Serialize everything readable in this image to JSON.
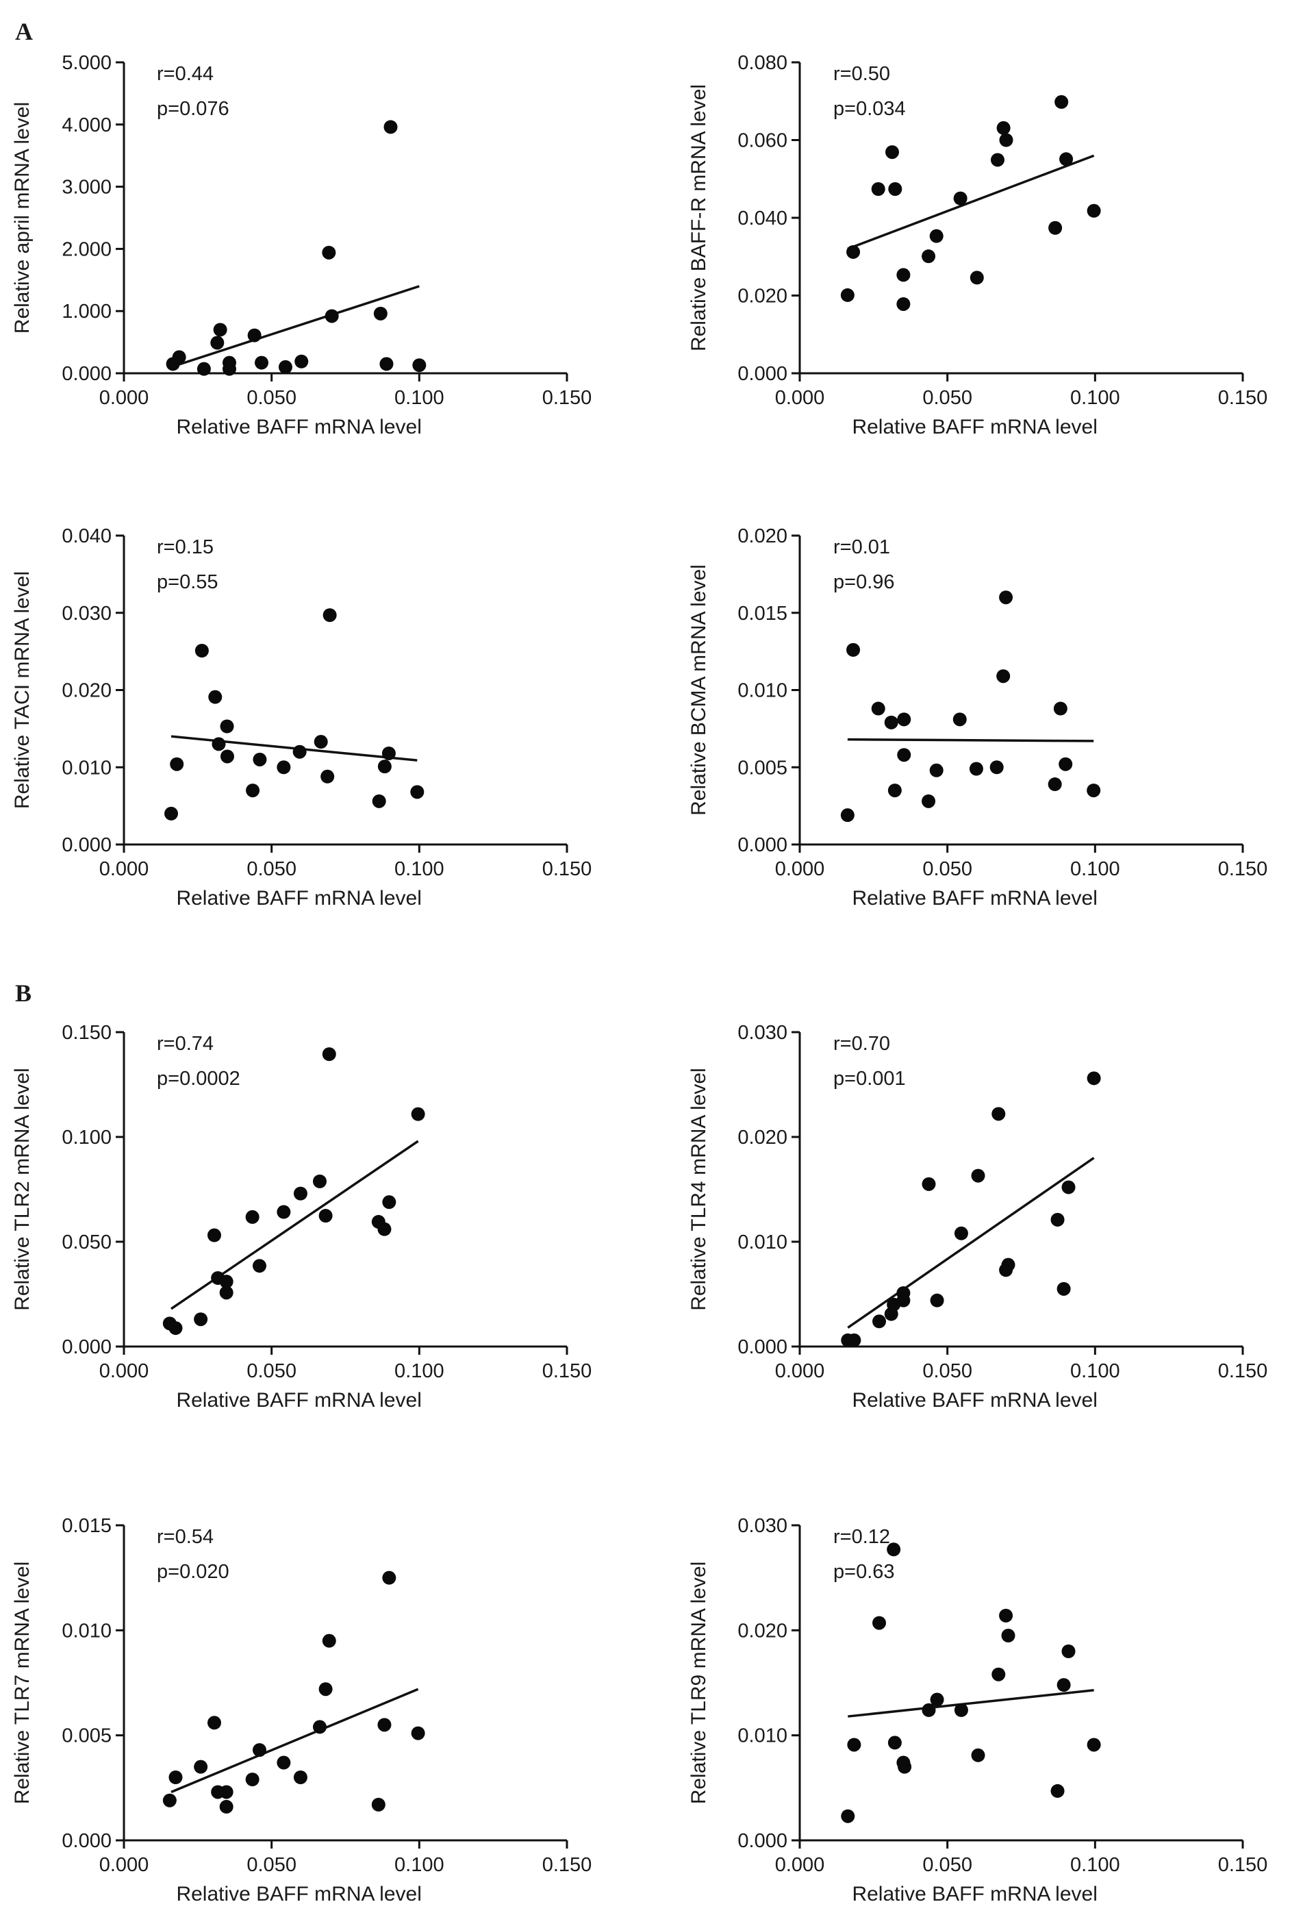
{
  "figure": {
    "panel_labels": [
      "A",
      "B"
    ]
  },
  "chart_data": [
    {
      "type": "scatter",
      "group": "A",
      "xlabel": "Relative BAFF mRNA level",
      "ylabel": "Relative april mRNA level",
      "xlim": [
        0,
        0.15
      ],
      "ylim": [
        0,
        5
      ],
      "xticks": [
        "0.000",
        "0.050",
        "0.100",
        "0.150"
      ],
      "yticks": [
        "0.000",
        "1.000",
        "2.000",
        "3.000",
        "4.000",
        "5.000"
      ],
      "r": "r=0.44",
      "p": "p=0.076",
      "x": [
        0.0166,
        0.0187,
        0.0271,
        0.0316,
        0.0326,
        0.0357,
        0.0357,
        0.0442,
        0.0466,
        0.0547,
        0.0601,
        0.0694,
        0.0704,
        0.0869,
        0.0889,
        0.0903,
        0.1
      ],
      "y": [
        0.15,
        0.26,
        0.07,
        0.49,
        0.7,
        0.17,
        0.07,
        0.61,
        0.17,
        0.1,
        0.19,
        1.94,
        0.92,
        0.96,
        0.15,
        3.96,
        0.13
      ],
      "fit_line": [
        [
          0.0166,
          0.11
        ],
        [
          0.1,
          1.4
        ]
      ]
    },
    {
      "type": "scatter",
      "group": "A",
      "xlabel": "Relative BAFF mRNA level",
      "ylabel": "Relative BAFF-R mRNA level",
      "xlim": [
        0,
        0.15
      ],
      "ylim": [
        0,
        0.08
      ],
      "xticks": [
        "0.000",
        "0.050",
        "0.100",
        "0.150"
      ],
      "yticks": [
        "0.000",
        "0.020",
        "0.040",
        "0.060",
        "0.080"
      ],
      "r": "r=0.50",
      "p": "p=0.034",
      "x": [
        0.0162,
        0.0181,
        0.0266,
        0.0313,
        0.0323,
        0.0351,
        0.0351,
        0.0436,
        0.0463,
        0.0544,
        0.06,
        0.067,
        0.069,
        0.0699,
        0.0865,
        0.0886,
        0.0902,
        0.0996
      ],
      "y": [
        0.0201,
        0.0312,
        0.0474,
        0.0569,
        0.0474,
        0.0253,
        0.0178,
        0.0301,
        0.0353,
        0.045,
        0.0246,
        0.0549,
        0.0631,
        0.06,
        0.0374,
        0.0698,
        0.0551,
        0.0418
      ],
      "fit_line": [
        [
          0.0162,
          0.032
        ],
        [
          0.0996,
          0.056
        ]
      ]
    },
    {
      "type": "scatter",
      "group": "A",
      "xlabel": "Relative BAFF mRNA level",
      "ylabel": "Relative TACI mRNA level",
      "xlim": [
        0,
        0.15
      ],
      "ylim": [
        0,
        0.04
      ],
      "xticks": [
        "0.000",
        "0.050",
        "0.100",
        "0.150"
      ],
      "yticks": [
        "0.000",
        "0.010",
        "0.020",
        "0.030",
        "0.040"
      ],
      "r": "r=0.15",
      "p": "p=0.55",
      "x": [
        0.016,
        0.0179,
        0.0264,
        0.0309,
        0.0349,
        0.0321,
        0.035,
        0.0436,
        0.046,
        0.0541,
        0.0595,
        0.0667,
        0.0689,
        0.0697,
        0.0864,
        0.0883,
        0.0897,
        0.0993
      ],
      "y": [
        0.004,
        0.0104,
        0.0251,
        0.0191,
        0.0153,
        0.013,
        0.0114,
        0.007,
        0.011,
        0.01,
        0.012,
        0.0133,
        0.0088,
        0.0297,
        0.0056,
        0.0101,
        0.0118,
        0.0068
      ],
      "fit_line": [
        [
          0.016,
          0.014
        ],
        [
          0.0993,
          0.0109
        ]
      ]
    },
    {
      "type": "scatter",
      "group": "A",
      "xlabel": "Relative BAFF mRNA level",
      "ylabel": "Relative BCMA mRNA level",
      "xlim": [
        0,
        0.15
      ],
      "ylim": [
        0,
        0.02
      ],
      "xticks": [
        "0.000",
        "0.050",
        "0.100",
        "0.150"
      ],
      "yticks": [
        "0.000",
        "0.005",
        "0.010",
        "0.015",
        "0.020"
      ],
      "r": "r=0.01",
      "p": "p=0.96",
      "x": [
        0.0162,
        0.0181,
        0.0266,
        0.031,
        0.0353,
        0.0353,
        0.0322,
        0.0436,
        0.0463,
        0.0542,
        0.0598,
        0.0667,
        0.0689,
        0.0698,
        0.0864,
        0.0883,
        0.09,
        0.0995
      ],
      "y": [
        0.0019,
        0.0126,
        0.0088,
        0.0079,
        0.0081,
        0.0058,
        0.0035,
        0.0028,
        0.0048,
        0.0081,
        0.0049,
        0.005,
        0.0109,
        0.016,
        0.0039,
        0.0088,
        0.0052,
        0.0035
      ],
      "fit_line": [
        [
          0.0162,
          0.0068
        ],
        [
          0.0995,
          0.0067
        ]
      ]
    },
    {
      "type": "scatter",
      "group": "B",
      "xlabel": "Relative BAFF mRNA level",
      "ylabel": "Relative TLR2 mRNA level",
      "xlim": [
        0,
        0.15
      ],
      "ylim": [
        0,
        0.15
      ],
      "xticks": [
        "0.000",
        "0.050",
        "0.100",
        "0.150"
      ],
      "yticks": [
        "0.000",
        "0.050",
        "0.100",
        "0.150"
      ],
      "r": "r=0.74",
      "p": "p=0.0002",
      "x": [
        0.0155,
        0.0175,
        0.026,
        0.0306,
        0.0318,
        0.0347,
        0.0347,
        0.0435,
        0.0459,
        0.0541,
        0.0598,
        0.0663,
        0.0683,
        0.0695,
        0.0862,
        0.0882,
        0.0898,
        0.0996
      ],
      "y": [
        0.011,
        0.0088,
        0.013,
        0.0531,
        0.0327,
        0.031,
        0.0257,
        0.0618,
        0.0385,
        0.0642,
        0.073,
        0.0788,
        0.0624,
        0.1395,
        0.0595,
        0.056,
        0.0689,
        0.1109
      ],
      "fit_line": [
        [
          0.016,
          0.018
        ],
        [
          0.0996,
          0.098
        ]
      ]
    },
    {
      "type": "scatter",
      "group": "B",
      "xlabel": "Relative BAFF mRNA level",
      "ylabel": "Relative TLR4 mRNA level",
      "xlim": [
        0,
        0.15
      ],
      "ylim": [
        0,
        0.03
      ],
      "xticks": [
        "0.000",
        "0.050",
        "0.100",
        "0.150"
      ],
      "yticks": [
        "0.000",
        "0.010",
        "0.020",
        "0.030"
      ],
      "r": "r=0.70",
      "p": "p=0.001",
      "x": [
        0.0163,
        0.0184,
        0.0269,
        0.031,
        0.0318,
        0.0351,
        0.0351,
        0.0437,
        0.0465,
        0.0547,
        0.0604,
        0.0673,
        0.0698,
        0.0706,
        0.0873,
        0.0894,
        0.091,
        0.0996
      ],
      "y": [
        0.0006,
        0.0006,
        0.0024,
        0.0031,
        0.004,
        0.0051,
        0.0044,
        0.0155,
        0.0044,
        0.0108,
        0.0163,
        0.0222,
        0.0073,
        0.0078,
        0.0121,
        0.0055,
        0.0152,
        0.0256
      ],
      "fit_line": [
        [
          0.0163,
          0.0018
        ],
        [
          0.0996,
          0.018
        ]
      ]
    },
    {
      "type": "scatter",
      "group": "B",
      "xlabel": "Relative BAFF mRNA level",
      "ylabel": "Relative TLR7 mRNA level",
      "xlim": [
        0,
        0.15
      ],
      "ylim": [
        0,
        0.015
      ],
      "xticks": [
        "0.000",
        "0.050",
        "0.100",
        "0.150"
      ],
      "yticks": [
        "0.000",
        "0.005",
        "0.010",
        "0.015"
      ],
      "r": "r=0.54",
      "p": "p=0.020",
      "x": [
        0.0155,
        0.0175,
        0.026,
        0.0306,
        0.0318,
        0.0347,
        0.0347,
        0.0435,
        0.0459,
        0.0541,
        0.0598,
        0.0663,
        0.0683,
        0.0695,
        0.0862,
        0.0882,
        0.0898,
        0.0996
      ],
      "y": [
        0.0019,
        0.003,
        0.0035,
        0.0056,
        0.0023,
        0.0023,
        0.0016,
        0.0029,
        0.0043,
        0.0037,
        0.003,
        0.0054,
        0.0072,
        0.0095,
        0.0017,
        0.0055,
        0.0125,
        0.0051
      ],
      "fit_line": [
        [
          0.016,
          0.0023
        ],
        [
          0.0996,
          0.0072
        ]
      ]
    },
    {
      "type": "scatter",
      "group": "B",
      "xlabel": "Relative BAFF mRNA level",
      "ylabel": "Relative TLR9 mRNA level",
      "xlim": [
        0,
        0.15
      ],
      "ylim": [
        0,
        0.03
      ],
      "xticks": [
        "0.000",
        "0.050",
        "0.100",
        "0.150"
      ],
      "yticks": [
        "0.000",
        "0.010",
        "0.020",
        "0.030"
      ],
      "r": "r=0.12",
      "p": "p=0.63",
      "x": [
        0.0163,
        0.0184,
        0.0269,
        0.0318,
        0.0322,
        0.0351,
        0.0355,
        0.0437,
        0.0465,
        0.0547,
        0.0604,
        0.0673,
        0.0698,
        0.0706,
        0.0873,
        0.0894,
        0.091,
        0.0996
      ],
      "y": [
        0.0023,
        0.0091,
        0.0207,
        0.0277,
        0.0093,
        0.0074,
        0.007,
        0.0124,
        0.0134,
        0.0124,
        0.0081,
        0.0158,
        0.0214,
        0.0195,
        0.0047,
        0.0148,
        0.018,
        0.0091
      ],
      "fit_line": [
        [
          0.0163,
          0.0118
        ],
        [
          0.0996,
          0.0143
        ]
      ]
    }
  ]
}
